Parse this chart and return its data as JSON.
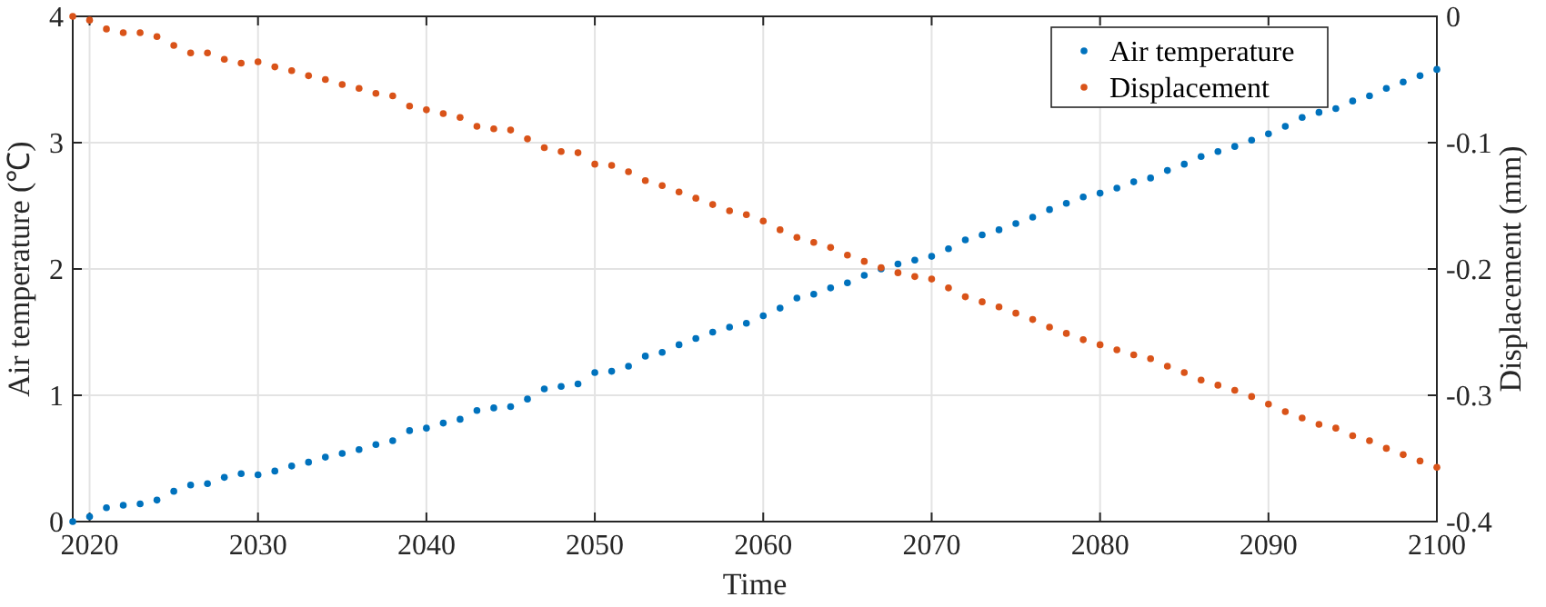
{
  "chart_data": {
    "type": "scatter",
    "xlabel": "Time",
    "ylabel": "Air temperature (℃)",
    "y2label": "Displacement (mm)",
    "x": [
      2019,
      2020,
      2021,
      2022,
      2023,
      2024,
      2025,
      2026,
      2027,
      2028,
      2029,
      2030,
      2031,
      2032,
      2033,
      2034,
      2035,
      2036,
      2037,
      2038,
      2039,
      2040,
      2041,
      2042,
      2043,
      2044,
      2045,
      2046,
      2047,
      2048,
      2049,
      2050,
      2051,
      2052,
      2053,
      2054,
      2055,
      2056,
      2057,
      2058,
      2059,
      2060,
      2061,
      2062,
      2063,
      2064,
      2065,
      2066,
      2067,
      2068,
      2069,
      2070,
      2071,
      2072,
      2073,
      2074,
      2075,
      2076,
      2077,
      2078,
      2079,
      2080,
      2081,
      2082,
      2083,
      2084,
      2085,
      2086,
      2087,
      2088,
      2089,
      2090,
      2091,
      2092,
      2093,
      2094,
      2095,
      2096,
      2097,
      2098,
      2099,
      2100
    ],
    "series": [
      {
        "name": "Air temperature",
        "color": "#0072bd",
        "values": [
          0,
          0.04,
          0.11,
          0.13,
          0.14,
          0.17,
          0.24,
          0.29,
          0.3,
          0.35,
          0.38,
          0.37,
          0.4,
          0.44,
          0.47,
          0.51,
          0.54,
          0.57,
          0.61,
          0.64,
          0.72,
          0.74,
          0.78,
          0.81,
          0.88,
          0.9,
          0.91,
          0.97,
          1.05,
          1.07,
          1.09,
          1.18,
          1.19,
          1.23,
          1.31,
          1.34,
          1.4,
          1.45,
          1.5,
          1.54,
          1.57,
          1.63,
          1.69,
          1.77,
          1.8,
          1.85,
          1.89,
          1.95,
          2.0,
          2.04,
          2.07,
          2.1,
          2.16,
          2.23,
          2.27,
          2.31,
          2.36,
          2.41,
          2.47,
          2.52,
          2.57,
          2.6,
          2.64,
          2.69,
          2.72,
          2.78,
          2.83,
          2.89,
          2.93,
          2.97,
          3.02,
          3.07,
          3.13,
          3.2,
          3.24,
          3.27,
          3.33,
          3.37,
          3.43,
          3.48,
          3.53,
          3.58
        ]
      },
      {
        "name": "Displacement",
        "color": "#d95319",
        "axis": "y2",
        "values": [
          0,
          -0.003,
          -0.01,
          -0.013,
          -0.013,
          -0.016,
          -0.023,
          -0.029,
          -0.029,
          -0.034,
          -0.037,
          -0.036,
          -0.04,
          -0.043,
          -0.047,
          -0.05,
          -0.054,
          -0.057,
          -0.061,
          -0.063,
          -0.071,
          -0.074,
          -0.077,
          -0.08,
          -0.087,
          -0.089,
          -0.09,
          -0.097,
          -0.104,
          -0.107,
          -0.108,
          -0.117,
          -0.118,
          -0.123,
          -0.13,
          -0.134,
          -0.139,
          -0.144,
          -0.149,
          -0.154,
          -0.157,
          -0.162,
          -0.169,
          -0.175,
          -0.179,
          -0.183,
          -0.189,
          -0.194,
          -0.199,
          -0.203,
          -0.206,
          -0.208,
          -0.215,
          -0.222,
          -0.226,
          -0.23,
          -0.235,
          -0.24,
          -0.246,
          -0.251,
          -0.256,
          -0.26,
          -0.264,
          -0.268,
          -0.271,
          -0.277,
          -0.282,
          -0.288,
          -0.292,
          -0.296,
          -0.301,
          -0.307,
          -0.313,
          -0.318,
          -0.323,
          -0.326,
          -0.332,
          -0.336,
          -0.342,
          -0.347,
          -0.352,
          -0.357
        ]
      }
    ],
    "xlim": [
      2019,
      2100
    ],
    "xticks": [
      2020,
      2030,
      2040,
      2050,
      2060,
      2070,
      2080,
      2090,
      2100
    ],
    "ylim": [
      0,
      4
    ],
    "yticks": [
      0,
      1,
      2,
      3,
      4
    ],
    "y2lim": [
      -0.4,
      0
    ],
    "y2ticks": [
      -0.4,
      -0.3,
      -0.2,
      -0.1,
      0
    ],
    "grid": true,
    "legend": "top right",
    "marker": "circle"
  }
}
